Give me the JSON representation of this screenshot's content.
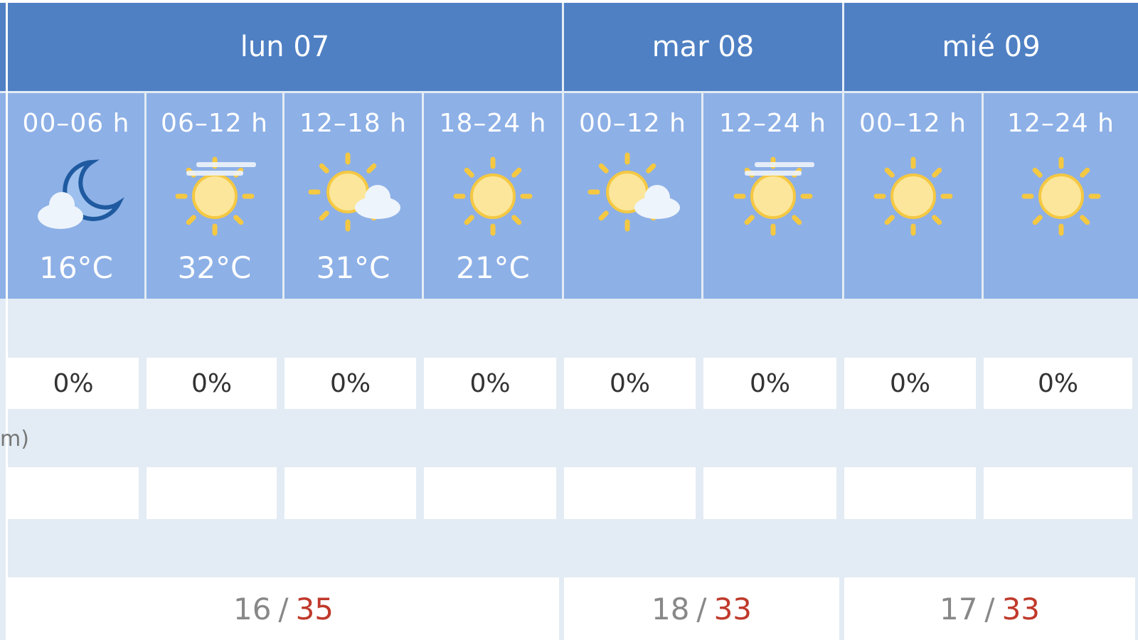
{
  "days": [
    {
      "label": "lun 07",
      "min": "16",
      "max": "35"
    },
    {
      "label": "mar 08",
      "min": "18",
      "max": "33"
    },
    {
      "label": "mié 09",
      "min": "17",
      "max": "33"
    }
  ],
  "periods": [
    {
      "day": 0,
      "label": "00–06 h",
      "icon": "moon-cloud-icon",
      "temp": "16°C",
      "precip_prob": "0%"
    },
    {
      "day": 0,
      "label": "06–12 h",
      "icon": "sun-haze-icon",
      "temp": "32°C",
      "precip_prob": "0%"
    },
    {
      "day": 0,
      "label": "12–18 h",
      "icon": "sun-cloud-icon",
      "temp": "31°C",
      "precip_prob": "0%"
    },
    {
      "day": 0,
      "label": "18–24 h",
      "icon": "sun-icon",
      "temp": "21°C",
      "precip_prob": "0%"
    },
    {
      "day": 1,
      "label": "00–12 h",
      "icon": "sun-cloud-icon",
      "temp": "",
      "precip_prob": "0%"
    },
    {
      "day": 1,
      "label": "12–24 h",
      "icon": "sun-haze-icon",
      "temp": "",
      "precip_prob": "0%"
    },
    {
      "day": 2,
      "label": "00–12 h",
      "icon": "sun-icon",
      "temp": "",
      "precip_prob": "0%"
    },
    {
      "day": 2,
      "label": "12–24 h",
      "icon": "sun-icon",
      "temp": "",
      "precip_prob": "0%"
    }
  ],
  "row_label_fragment": "m)",
  "colors": {
    "header": "#4f80c4",
    "period": "#8db0e6",
    "max_temp": "#c0392b"
  }
}
